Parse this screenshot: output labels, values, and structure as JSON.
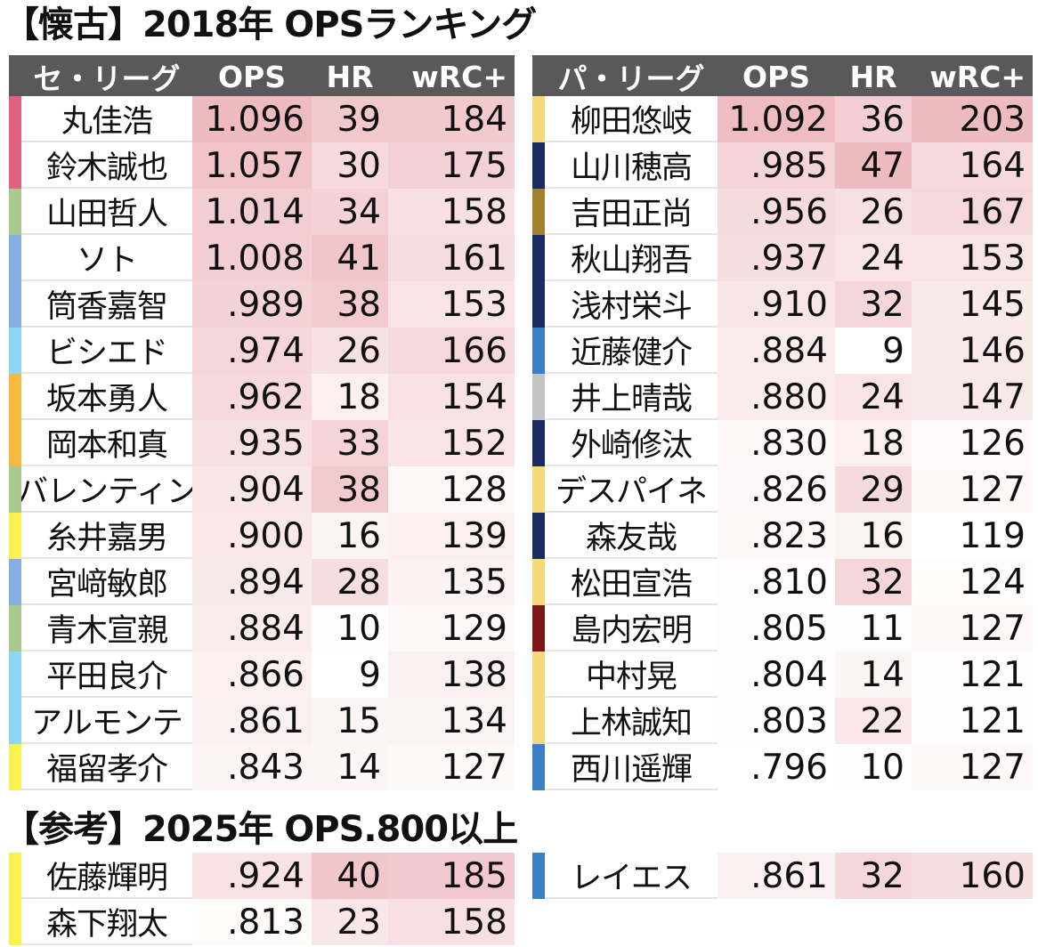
{
  "title": "【懐古】2018年 OPSランキング",
  "ref_title": "【参考】2025年 OPS.800以上",
  "headers": {
    "central": "セ・リーグ",
    "pacific": "パ・リーグ",
    "ops": "OPS",
    "hr": "HR",
    "wrc": "wRC+"
  },
  "heat_color": "#e8a4ab",
  "heat_ranges": {
    "ops": [
      0.796,
      1.096
    ],
    "hr": [
      9,
      47
    ],
    "wrc": [
      119,
      203
    ]
  },
  "central": [
    {
      "name": "丸佳浩",
      "ops": "1.096",
      "hr": "39",
      "wrc": "184",
      "team_color": "#e0607e"
    },
    {
      "name": "鈴木誠也",
      "ops": "1.057",
      "hr": "30",
      "wrc": "175",
      "team_color": "#e0607e"
    },
    {
      "name": "山田哲人",
      "ops": "1.014",
      "hr": "34",
      "wrc": "158",
      "team_color": "#a9c98e"
    },
    {
      "name": "ソト",
      "ops": "1.008",
      "hr": "41",
      "wrc": "161",
      "team_color": "#86aee2"
    },
    {
      "name": "筒香嘉智",
      "ops": ".989",
      "hr": "38",
      "wrc": "153",
      "team_color": "#86aee2"
    },
    {
      "name": "ビシエド",
      "ops": ".974",
      "hr": "26",
      "wrc": "166",
      "team_color": "#8fd6f2"
    },
    {
      "name": "坂本勇人",
      "ops": ".962",
      "hr": "18",
      "wrc": "154",
      "team_color": "#f5b942"
    },
    {
      "name": "岡本和真",
      "ops": ".935",
      "hr": "33",
      "wrc": "152",
      "team_color": "#f5b942"
    },
    {
      "name": "バレンティン",
      "ops": ".904",
      "hr": "38",
      "wrc": "128",
      "team_color": "#a9c98e"
    },
    {
      "name": "糸井嘉男",
      "ops": ".900",
      "hr": "16",
      "wrc": "139",
      "team_color": "#f8f150"
    },
    {
      "name": "宮﨑敏郎",
      "ops": ".894",
      "hr": "28",
      "wrc": "135",
      "team_color": "#86aee2"
    },
    {
      "name": "青木宣親",
      "ops": ".884",
      "hr": "10",
      "wrc": "129",
      "team_color": "#a9c98e"
    },
    {
      "name": "平田良介",
      "ops": ".866",
      "hr": "9",
      "wrc": "138",
      "team_color": "#8fd6f2"
    },
    {
      "name": "アルモンテ",
      "ops": ".861",
      "hr": "15",
      "wrc": "134",
      "team_color": "#8fd6f2"
    },
    {
      "name": "福留孝介",
      "ops": ".843",
      "hr": "14",
      "wrc": "127",
      "team_color": "#f8f150"
    }
  ],
  "pacific": [
    {
      "name": "柳田悠岐",
      "ops": "1.092",
      "hr": "36",
      "wrc": "203",
      "team_color": "#f5d87a"
    },
    {
      "name": "山川穂高",
      "ops": ".985",
      "hr": "47",
      "wrc": "164",
      "team_color": "#1a2b62"
    },
    {
      "name": "吉田正尚",
      "ops": ".956",
      "hr": "26",
      "wrc": "167",
      "team_color": "#a2812e"
    },
    {
      "name": "秋山翔吾",
      "ops": ".937",
      "hr": "24",
      "wrc": "153",
      "team_color": "#1a2b62"
    },
    {
      "name": "浅村栄斗",
      "ops": ".910",
      "hr": "32",
      "wrc": "145",
      "team_color": "#1a2b62"
    },
    {
      "name": "近藤健介",
      "ops": ".884",
      "hr": "9",
      "wrc": "146",
      "team_color": "#3b7fc8"
    },
    {
      "name": "井上晴哉",
      "ops": ".880",
      "hr": "24",
      "wrc": "147",
      "team_color": "#c4c4c4"
    },
    {
      "name": "外崎修汰",
      "ops": ".830",
      "hr": "18",
      "wrc": "126",
      "team_color": "#1a2b62"
    },
    {
      "name": "デスパイネ",
      "ops": ".826",
      "hr": "29",
      "wrc": "127",
      "team_color": "#f5d87a"
    },
    {
      "name": "森友哉",
      "ops": ".823",
      "hr": "16",
      "wrc": "119",
      "team_color": "#1a2b62"
    },
    {
      "name": "松田宣浩",
      "ops": ".810",
      "hr": "32",
      "wrc": "124",
      "team_color": "#f5d87a"
    },
    {
      "name": "島内宏明",
      "ops": ".805",
      "hr": "11",
      "wrc": "127",
      "team_color": "#7a1818"
    },
    {
      "name": "中村晃",
      "ops": ".804",
      "hr": "14",
      "wrc": "121",
      "team_color": "#f5d87a"
    },
    {
      "name": "上林誠知",
      "ops": ".803",
      "hr": "22",
      "wrc": "121",
      "team_color": "#f5d87a"
    },
    {
      "name": "西川遥輝",
      "ops": ".796",
      "hr": "10",
      "wrc": "127",
      "team_color": "#3b7fc8"
    }
  ],
  "ref_central": [
    {
      "name": "佐藤輝明",
      "ops": ".924",
      "hr": "40",
      "wrc": "185",
      "team_color": "#f8f150"
    },
    {
      "name": "森下翔太",
      "ops": ".813",
      "hr": "23",
      "wrc": "158",
      "team_color": "#f8f150"
    }
  ],
  "ref_pacific": [
    {
      "name": "レイエス",
      "ops": ".861",
      "hr": "32",
      "wrc": "160",
      "team_color": "#3b7fc8"
    }
  ]
}
